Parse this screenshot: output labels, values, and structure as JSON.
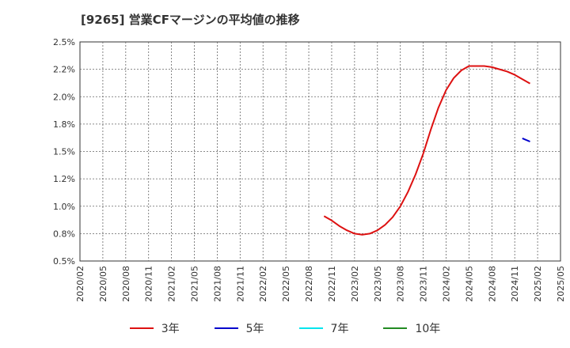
{
  "chart_data": {
    "type": "line",
    "title": "[9265]  営業CFマージンの平均値の推移",
    "xlabel": "",
    "ylabel": "",
    "ylim": [
      0.005,
      0.025
    ],
    "y_ticks": [
      0.005,
      0.0075,
      0.01,
      0.0125,
      0.015,
      0.0175,
      0.02,
      0.0225,
      0.025
    ],
    "y_tick_labels": [
      "0.5%",
      "0.8%",
      "1.0%",
      "1.2%",
      "1.5%",
      "1.8%",
      "2.0%",
      "2.2%",
      "2.5%"
    ],
    "x_tick_labels": [
      "2020/02",
      "2020/05",
      "2020/08",
      "2020/11",
      "2021/02",
      "2021/05",
      "2021/08",
      "2021/11",
      "2022/02",
      "2022/05",
      "2022/08",
      "2022/11",
      "2023/02",
      "2023/05",
      "2023/08",
      "2023/11",
      "2024/02",
      "2024/05",
      "2024/08",
      "2024/11",
      "2025/02",
      "2025/05"
    ],
    "grid": true,
    "legend_position": "bottom",
    "series": [
      {
        "name": "3年",
        "color": "#dd1111",
        "points": [
          [
            "2022/10",
            0.0091
          ],
          [
            "2022/11",
            0.0087
          ],
          [
            "2022/12",
            0.0082
          ],
          [
            "2023/01",
            0.0078
          ],
          [
            "2023/02",
            0.0075
          ],
          [
            "2023/03",
            0.0074
          ],
          [
            "2023/04",
            0.0075
          ],
          [
            "2023/05",
            0.0078
          ],
          [
            "2023/06",
            0.0083
          ],
          [
            "2023/07",
            0.009
          ],
          [
            "2023/08",
            0.01
          ],
          [
            "2023/09",
            0.0113
          ],
          [
            "2023/10",
            0.0129
          ],
          [
            "2023/11",
            0.0148
          ],
          [
            "2023/12",
            0.017
          ],
          [
            "2024/01",
            0.019
          ],
          [
            "2024/02",
            0.0206
          ],
          [
            "2024/03",
            0.0217
          ],
          [
            "2024/04",
            0.0224
          ],
          [
            "2024/05",
            0.0228
          ],
          [
            "2024/06",
            0.0228
          ],
          [
            "2024/07",
            0.0228
          ],
          [
            "2024/08",
            0.0227
          ],
          [
            "2024/09",
            0.0225
          ],
          [
            "2024/10",
            0.0223
          ],
          [
            "2024/11",
            0.022
          ],
          [
            "2024/12",
            0.0216
          ],
          [
            "2025/01",
            0.0212
          ]
        ]
      },
      {
        "name": "5年",
        "color": "#0000cc",
        "points": [
          [
            "2024/12",
            0.0162
          ],
          [
            "2025/01",
            0.0159
          ]
        ]
      },
      {
        "name": "7年",
        "color": "#00e5ee",
        "points": []
      },
      {
        "name": "10年",
        "color": "#228b22",
        "points": []
      }
    ]
  }
}
